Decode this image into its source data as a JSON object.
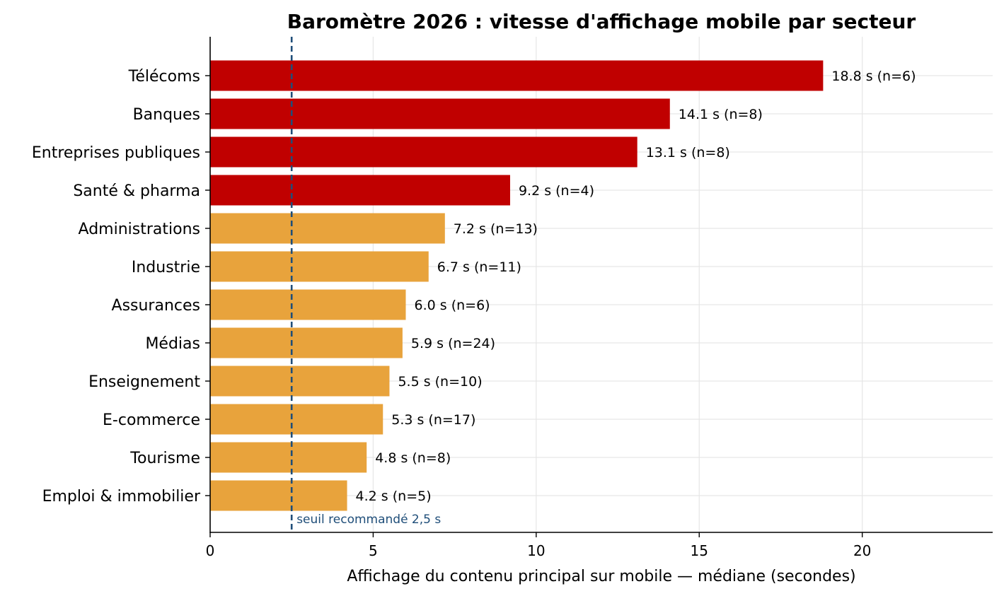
{
  "chart_data": {
    "type": "bar",
    "orientation": "horizontal",
    "title": "Baromètre 2026 : vitesse d'affichage mobile par secteur",
    "xlabel": "Affichage du contenu principal sur mobile — médiane (secondes)",
    "ylabel": "",
    "xlim": [
      0,
      24
    ],
    "xticks": [
      0,
      5,
      10,
      15,
      20
    ],
    "grid": true,
    "categories": [
      "Télécoms",
      "Banques",
      "Entreprises publiques",
      "Santé & pharma",
      "Administrations",
      "Industrie",
      "Assurances",
      "Médias",
      "Enseignement",
      "E-commerce",
      "Tourisme",
      "Emploi & immobilier"
    ],
    "values": [
      18.8,
      14.1,
      13.1,
      9.2,
      7.2,
      6.7,
      6.0,
      5.9,
      5.5,
      5.3,
      4.8,
      4.2
    ],
    "data_labels": [
      "18.8 s  (n=6)",
      "14.1 s  (n=8)",
      "13.1 s  (n=8)",
      "9.2 s  (n=4)",
      "7.2 s  (n=13)",
      "6.7 s  (n=11)",
      "6.0 s  (n=6)",
      "5.9 s  (n=24)",
      "5.5 s  (n=10)",
      "5.3 s  (n=17)",
      "4.8 s  (n=8)",
      "4.2 s  (n=5)"
    ],
    "bar_colors": [
      "#c00000",
      "#c00000",
      "#c00000",
      "#c00000",
      "#e8a33c",
      "#e8a33c",
      "#e8a33c",
      "#e8a33c",
      "#e8a33c",
      "#e8a33c",
      "#e8a33c",
      "#e8a33c"
    ],
    "threshold": {
      "value": 2.5,
      "label": "seuil recommandé 2,5 s",
      "color": "#1f4e79"
    }
  }
}
